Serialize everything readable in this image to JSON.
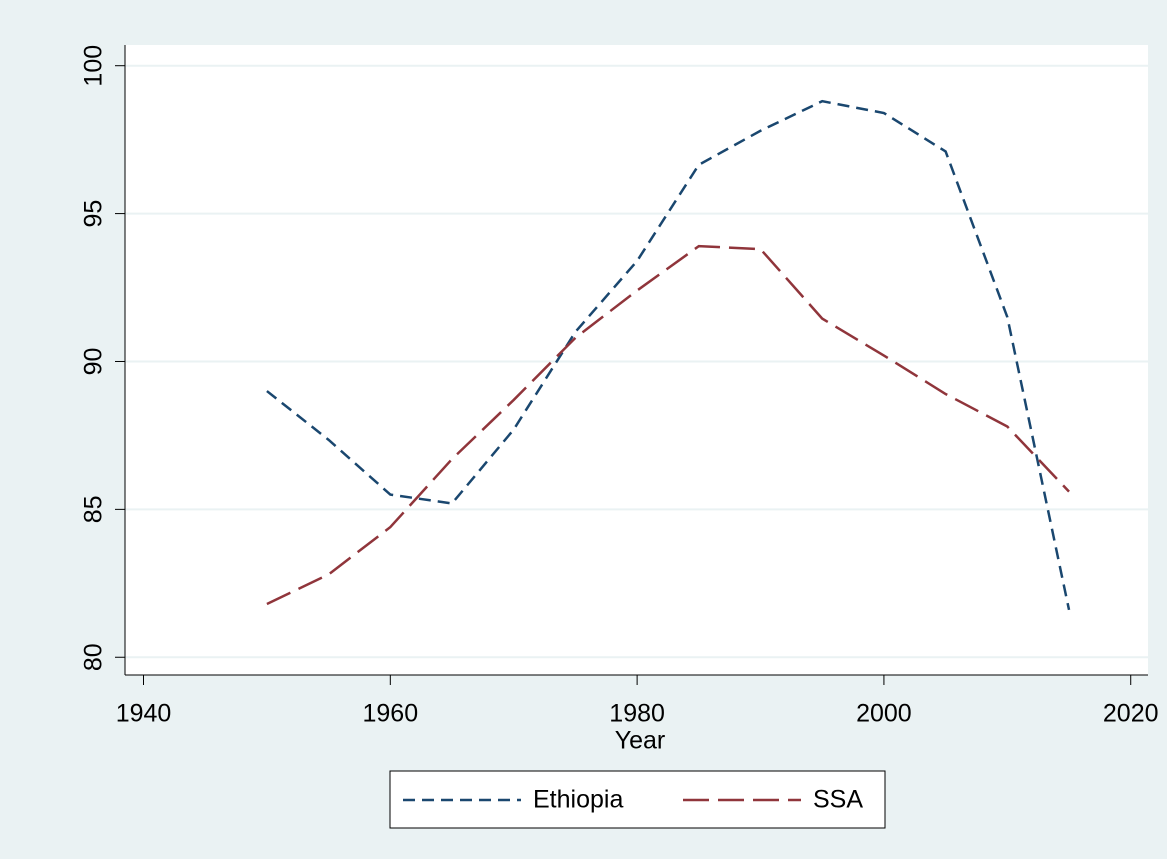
{
  "chart_data": {
    "type": "line",
    "x_label": "Year",
    "x": [
      1950,
      1955,
      1960,
      1965,
      1970,
      1975,
      1980,
      1985,
      1990,
      1995,
      2000,
      2005,
      2010,
      2015
    ],
    "series": [
      {
        "name": "Ethiopia",
        "color": "#1a476f",
        "dash": "12 7",
        "values": [
          89.0,
          87.35,
          85.5,
          85.2,
          87.7,
          91.0,
          93.4,
          96.65,
          97.8,
          98.8,
          98.4,
          97.1,
          91.5,
          81.6
        ]
      },
      {
        "name": "SSA",
        "color": "#90353b",
        "dash": "26 9",
        "values": [
          81.8,
          82.8,
          84.4,
          86.7,
          88.7,
          90.8,
          92.4,
          93.9,
          93.8,
          91.45,
          90.2,
          88.9,
          87.8,
          85.6
        ]
      }
    ],
    "xlim": [
      1938.5,
      2021.4
    ],
    "xticks": [
      1940,
      1960,
      1980,
      2000,
      2020
    ],
    "ylim": [
      79.4,
      100.7
    ],
    "yticks": [
      80,
      85,
      90,
      95,
      100
    ],
    "grid": true,
    "legend": "bottom"
  }
}
